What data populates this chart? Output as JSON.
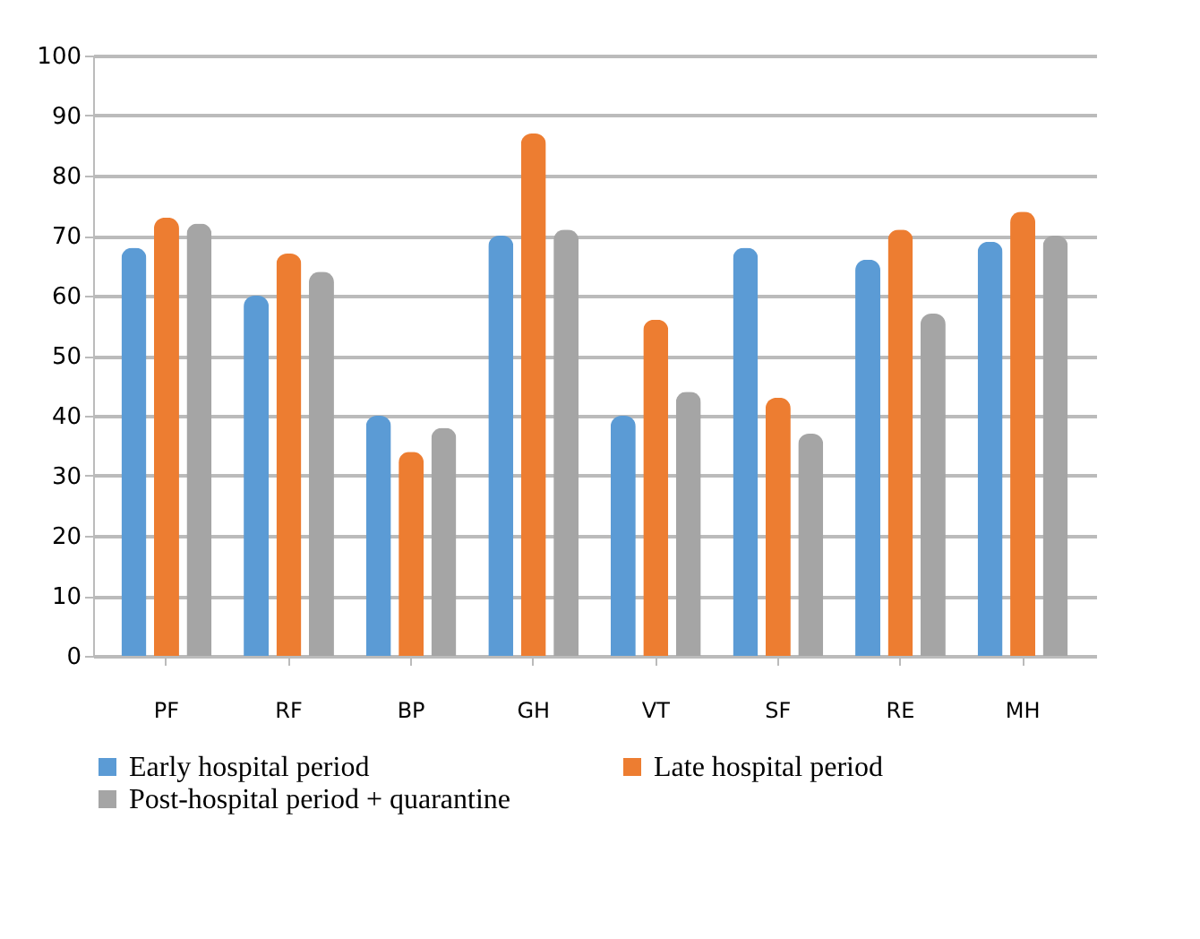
{
  "chart_data": {
    "type": "bar",
    "categories": [
      "PF",
      "RF",
      "BP",
      "GH",
      "VT",
      "SF",
      "RE",
      "MH"
    ],
    "series": [
      {
        "name": "Early hospital period",
        "color": "#5b9bd5",
        "values": [
          68,
          60,
          40,
          70,
          40,
          68,
          66,
          69
        ]
      },
      {
        "name": "Late hospital period",
        "color": "#ed7d31",
        "values": [
          73,
          67,
          34,
          87,
          56,
          43,
          71,
          74
        ]
      },
      {
        "name": "Post-hospital period + quarantine",
        "color": "#a5a5a5",
        "values": [
          72,
          64,
          38,
          71,
          44,
          37,
          57,
          70
        ]
      }
    ],
    "ylim": [
      0,
      100
    ],
    "yticks": [
      0,
      10,
      20,
      30,
      40,
      50,
      60,
      70,
      80,
      90,
      100
    ],
    "grid": "y",
    "legend": "bottom"
  }
}
